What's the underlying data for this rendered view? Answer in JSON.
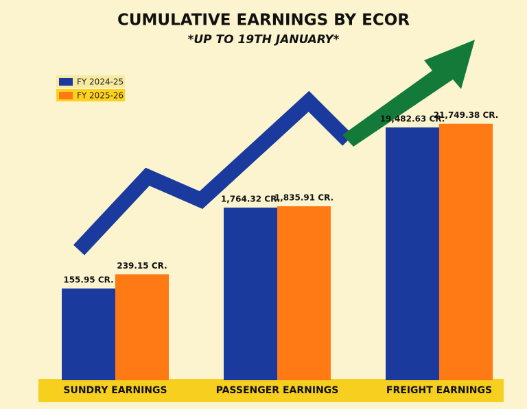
{
  "chart_data": {
    "type": "bar",
    "title": "CUMULATIVE EARNINGS BY ECOR",
    "subtitle": "*UP TO 19TH JANUARY*",
    "categories": [
      "SUNDRY EARNINGS",
      "PASSENGER EARNINGS",
      "FREIGHT EARNINGS"
    ],
    "series": [
      {
        "name": "FY 2024-25",
        "color": "#1b3a9e",
        "values": [
          155.95,
          1764.32,
          19482.63
        ],
        "value_labels": [
          "155.95 CR.",
          "1,764.32 CR.",
          "19,482.63 CR."
        ]
      },
      {
        "name": "FY 2025-26",
        "color": "#ff7a14",
        "values": [
          239.15,
          1835.91,
          21749.38
        ],
        "value_labels": [
          "239.15 CR.",
          "1,835.91 CR.",
          "21,749.38 CR."
        ]
      }
    ],
    "log_scale": true,
    "ylim": [
      10,
      30000
    ],
    "legend": "top-left"
  }
}
